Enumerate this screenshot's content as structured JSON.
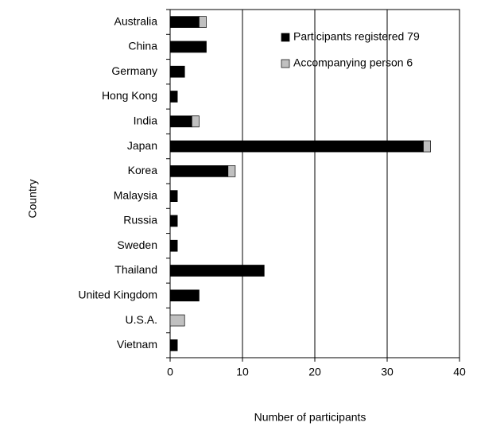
{
  "chart_data": {
    "type": "stacked-barh",
    "x_label": "Number of participants",
    "y_label": "Country",
    "categories": [
      "Australia",
      "China",
      "Germany",
      "Hong Kong",
      "India",
      "Japan",
      "Korea",
      "Malaysia",
      "Russia",
      "Sweden",
      "Thailand",
      "United Kingdom",
      "U.S.A.",
      "Vietnam"
    ],
    "series": [
      {
        "name": "Participants registered 79",
        "color": "#000000",
        "values": [
          4,
          5,
          2,
          1,
          3,
          35,
          8,
          1,
          1,
          1,
          13,
          4,
          0,
          1
        ]
      },
      {
        "name": "Accompanying person 6",
        "color": "#c0c0c0",
        "values": [
          1,
          0,
          0,
          0,
          1,
          1,
          1,
          0,
          0,
          0,
          0,
          0,
          2,
          0
        ]
      }
    ],
    "xlim": [
      0,
      40
    ],
    "xticks": [
      0,
      10,
      20,
      30,
      40
    ],
    "grid": true,
    "legend": "upper right"
  }
}
